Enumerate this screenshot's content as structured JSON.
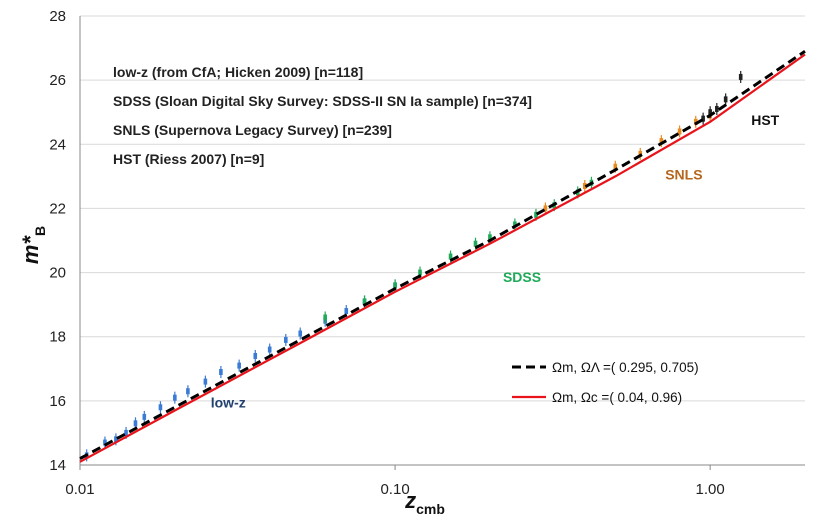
{
  "chart_data": {
    "type": "scatter",
    "title": "",
    "xscale": "log",
    "xlim": [
      0.01,
      2.0
    ],
    "ylim": [
      14,
      28
    ],
    "xlabel": {
      "main": "z",
      "sub": "cmb"
    },
    "ylabel": {
      "main": "m*",
      "sub": "B"
    },
    "x_ticks": [
      {
        "value": 0.01,
        "label": "0.01"
      },
      {
        "value": 0.1,
        "label": "0.10"
      },
      {
        "value": 1.0,
        "label": "1.00"
      }
    ],
    "y_ticks": [
      {
        "value": 14,
        "label": "14"
      },
      {
        "value": 16,
        "label": "16"
      },
      {
        "value": 18,
        "label": "18"
      },
      {
        "value": 20,
        "label": "20"
      },
      {
        "value": 22,
        "label": "22"
      },
      {
        "value": 24,
        "label": "24"
      },
      {
        "value": 26,
        "label": "26"
      },
      {
        "value": 28,
        "label": "28"
      }
    ],
    "grid": "horizontal",
    "notes": [
      "low-z (from CfA; Hicken 2009) [n=118]",
      "SDSS (Sloan Digital Sky Survey: SDSS-II SN Ia sample) [n=374]",
      "SNLS (Supernova Legacy Survey) [n=239]",
      "HST (Riess 2007) [n=9]"
    ],
    "series": [
      {
        "name": "low-z",
        "kind": "points",
        "color": "#3a7bd5",
        "z_range": [
          0.01,
          0.12
        ],
        "count": 118,
        "points": [
          [
            0.0105,
            14.3
          ],
          [
            0.012,
            14.7
          ],
          [
            0.013,
            14.8
          ],
          [
            0.014,
            15.0
          ],
          [
            0.015,
            15.3
          ],
          [
            0.016,
            15.5
          ],
          [
            0.018,
            15.8
          ],
          [
            0.02,
            16.1
          ],
          [
            0.022,
            16.3
          ],
          [
            0.025,
            16.6
          ],
          [
            0.028,
            16.9
          ],
          [
            0.032,
            17.1
          ],
          [
            0.036,
            17.4
          ],
          [
            0.04,
            17.6
          ],
          [
            0.045,
            17.9
          ],
          [
            0.05,
            18.1
          ],
          [
            0.06,
            18.5
          ],
          [
            0.07,
            18.8
          ],
          [
            0.08,
            19.1
          ],
          [
            0.1,
            19.6
          ]
        ]
      },
      {
        "name": "SDSS",
        "kind": "points",
        "color": "#1faa59",
        "z_range": [
          0.05,
          0.42
        ],
        "count": 374,
        "points": [
          [
            0.06,
            18.6
          ],
          [
            0.08,
            19.1
          ],
          [
            0.1,
            19.6
          ],
          [
            0.12,
            20.0
          ],
          [
            0.15,
            20.5
          ],
          [
            0.18,
            20.9
          ],
          [
            0.2,
            21.1
          ],
          [
            0.24,
            21.5
          ],
          [
            0.28,
            21.8
          ],
          [
            0.32,
            22.1
          ],
          [
            0.38,
            22.5
          ],
          [
            0.42,
            22.8
          ]
        ]
      },
      {
        "name": "SNLS",
        "kind": "points",
        "color": "#e98a1f",
        "z_range": [
          0.3,
          1.0
        ],
        "count": 239,
        "points": [
          [
            0.3,
            22.0
          ],
          [
            0.4,
            22.7
          ],
          [
            0.5,
            23.3
          ],
          [
            0.6,
            23.7
          ],
          [
            0.7,
            24.1
          ],
          [
            0.8,
            24.4
          ],
          [
            0.9,
            24.7
          ],
          [
            1.0,
            24.9
          ]
        ]
      },
      {
        "name": "HST",
        "kind": "points",
        "color": "#222222",
        "z_range": [
          0.9,
          1.3
        ],
        "count": 9,
        "points": [
          [
            0.95,
            24.8
          ],
          [
            1.0,
            25.0
          ],
          [
            1.05,
            25.1
          ],
          [
            1.12,
            25.4
          ],
          [
            1.25,
            26.1
          ]
        ]
      },
      {
        "name": "Ωm, ΩΛ =( 0.295, 0.705)",
        "kind": "curve",
        "color": "#000000",
        "style": "dashed",
        "points": [
          [
            0.01,
            14.2
          ],
          [
            0.02,
            15.8
          ],
          [
            0.05,
            17.9
          ],
          [
            0.1,
            19.5
          ],
          [
            0.2,
            21.0
          ],
          [
            0.5,
            23.2
          ],
          [
            1.0,
            24.9
          ],
          [
            2.0,
            26.9
          ]
        ]
      },
      {
        "name": "Ωm, Ωc =( 0.04, 0.96)",
        "kind": "curve",
        "color": "#e8141b",
        "style": "solid",
        "points": [
          [
            0.01,
            14.1
          ],
          [
            0.02,
            15.7
          ],
          [
            0.05,
            17.8
          ],
          [
            0.1,
            19.4
          ],
          [
            0.2,
            20.9
          ],
          [
            0.5,
            23.0
          ],
          [
            1.0,
            24.7
          ],
          [
            2.0,
            26.8
          ]
        ]
      }
    ],
    "annotations": [
      {
        "text": "low-z",
        "color": "#22406e",
        "at": [
          0.026,
          15.8
        ]
      },
      {
        "text": "SDSS",
        "color": "#1faa59",
        "at": [
          0.22,
          19.7
        ]
      },
      {
        "text": "SNLS",
        "color": "#b5651d",
        "at": [
          0.72,
          22.9
        ]
      },
      {
        "text": "HST",
        "color": "#111111",
        "at": [
          1.35,
          24.6
        ]
      }
    ],
    "legend": {
      "placement": "bottom-right",
      "entries": [
        {
          "label": "Ωm, ΩΛ =( 0.295, 0.705)",
          "style": "dashed",
          "color": "#000000"
        },
        {
          "label": "Ωm, Ωc =( 0.04, 0.96)",
          "style": "solid",
          "color": "#e8141b"
        }
      ]
    }
  }
}
